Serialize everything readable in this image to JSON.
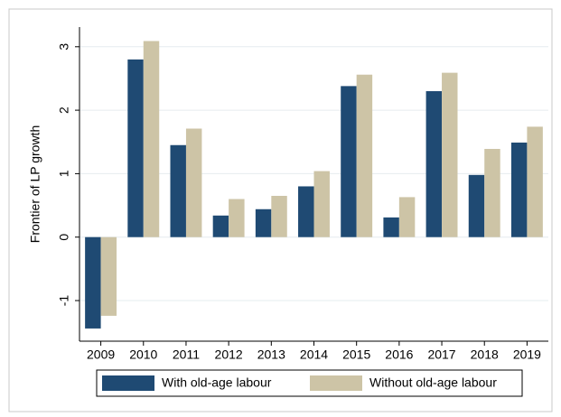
{
  "chart_data": {
    "type": "bar",
    "y_label": "Frontier of LP growth",
    "categories": [
      "2009",
      "2010",
      "2011",
      "2012",
      "2013",
      "2014",
      "2015",
      "2016",
      "2017",
      "2018",
      "2019"
    ],
    "series": [
      {
        "name": "With old-age labour",
        "color": "#1f4a73",
        "values": [
          -1.44,
          2.8,
          1.45,
          0.34,
          0.44,
          0.8,
          2.38,
          0.31,
          2.3,
          0.98,
          1.49
        ]
      },
      {
        "name": "Without old-age labour",
        "color": "#cdc4a6",
        "values": [
          -1.24,
          3.09,
          1.71,
          0.6,
          0.65,
          1.04,
          2.56,
          0.63,
          2.59,
          1.39,
          1.74
        ]
      }
    ],
    "ylim": [
      -1.64,
      3.31
    ],
    "yticks": [
      -1,
      0,
      1,
      2,
      3
    ],
    "grid": true,
    "legend": "bottom"
  }
}
